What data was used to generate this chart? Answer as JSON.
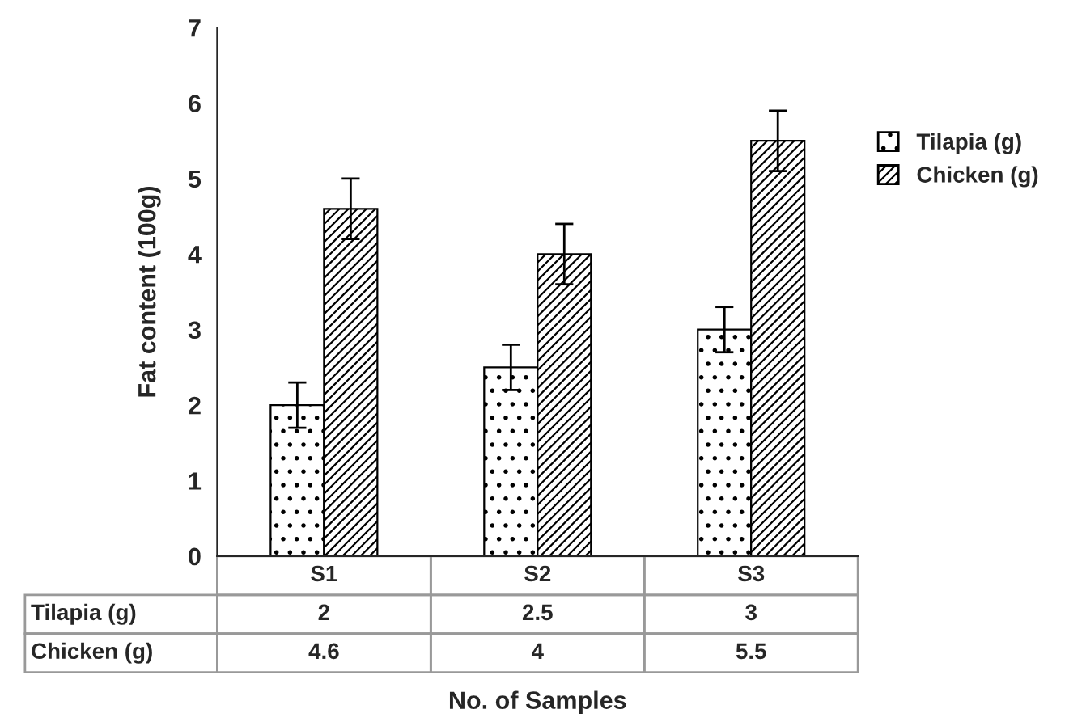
{
  "chart_data": {
    "type": "bar",
    "xlabel": "No. of Samples",
    "ylabel": "Fat content (100g)",
    "categories": [
      "S1",
      "S2",
      "S3"
    ],
    "series": [
      {
        "name": "Tilapia (g)",
        "color": "#000000",
        "values": [
          2,
          2.5,
          3
        ],
        "errors": [
          0.3,
          0.3,
          0.3
        ]
      },
      {
        "name": "Chicken (g)",
        "color": "#000000",
        "values": [
          4.6,
          4,
          5.5
        ],
        "errors": [
          0.4,
          0.4,
          0.4
        ]
      }
    ],
    "ylim": [
      0,
      7
    ],
    "yticks": [
      0,
      1,
      2,
      3,
      4,
      5,
      6,
      7
    ],
    "grid": false,
    "legend": "right",
    "data_labels": true
  }
}
